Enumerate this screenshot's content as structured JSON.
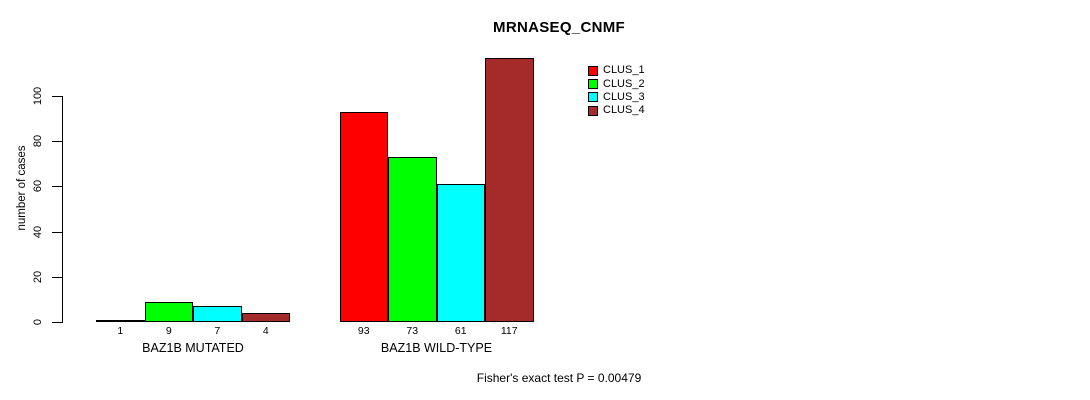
{
  "chart_data": {
    "type": "bar",
    "title": "MRNASEQ_CNMF",
    "ylabel": "number of cases",
    "xlabel": "",
    "categories": [
      "BAZ1B MUTATED",
      "BAZ1B WILD-TYPE"
    ],
    "series": [
      {
        "name": "CLUS_1",
        "color": "#ff0000",
        "values": [
          1,
          93
        ]
      },
      {
        "name": "CLUS_2",
        "color": "#00ff00",
        "values": [
          9,
          73
        ]
      },
      {
        "name": "CLUS_3",
        "color": "#00ffff",
        "values": [
          7,
          61
        ]
      },
      {
        "name": "CLUS_4",
        "color": "#a52a2a",
        "values": [
          4,
          117
        ]
      }
    ],
    "bar_value_labels": [
      [
        1,
        9,
        7,
        4
      ],
      [
        93,
        73,
        61,
        117
      ]
    ],
    "yticks": [
      0,
      20,
      40,
      60,
      80,
      100
    ],
    "ylim": [
      0,
      117
    ],
    "grid": false,
    "legend_position": "top-right-inside",
    "legend_entries": [
      "CLUS_1",
      "CLUS_2",
      "CLUS_3",
      "CLUS_4"
    ],
    "annotation": "Fisher's exact test P = 0.00479",
    "bar_border_color": "#000000",
    "text_color": "#000000",
    "background_color": "#ffffff"
  }
}
